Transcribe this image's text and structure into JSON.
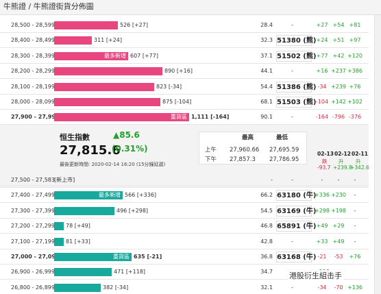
{
  "breadcrumb": "牛熊證 / 牛熊證街貨分佈圖",
  "bear_rows": [
    {
      "range": "28,500 - 28,599",
      "qty": "526 [+27]",
      "pct": "28.4",
      "code": "-",
      "d1": "+27",
      "d2": "+54",
      "d3": "+81",
      "d1c": "up",
      "d2c": "up",
      "d3c": "up",
      "tag": ""
    },
    {
      "range": "28,400 - 28,499",
      "qty": "311 [+24]",
      "pct": "32.3",
      "code": "51380 (熊)",
      "d1": "+24",
      "d2": "+51",
      "d3": "+97",
      "d1c": "up",
      "d2c": "up",
      "d3c": "up",
      "tag": ""
    },
    {
      "range": "28,300 - 28,399",
      "qty": "607 [+77]",
      "pct": "37.1",
      "code": "51502 (熊)",
      "d1": "+77",
      "d2": "+42",
      "d3": "+120",
      "d1c": "up",
      "d2c": "up",
      "d3c": "up",
      "tag": "最多新增"
    },
    {
      "range": "28,200 - 28,299",
      "qty": "890 [+16]",
      "pct": "44.1",
      "code": "-",
      "d1": "+16",
      "d2": "+237",
      "d3": "+386",
      "d1c": "up",
      "d2c": "up",
      "d3c": "up",
      "tag": ""
    },
    {
      "range": "28,100 - 28,199",
      "qty": "823 [-34]",
      "pct": "54.4",
      "code": "51386 (熊)",
      "d1": "-34",
      "d2": "+239",
      "d3": "+76",
      "d1c": "down",
      "d2c": "up",
      "d3c": "up",
      "tag": ""
    },
    {
      "range": "28,000 - 28,099",
      "qty": "875 [-104]",
      "pct": "68.1",
      "code": "51503 (熊)",
      "d1": "-104",
      "d2": "+142",
      "d3": "+102",
      "d1c": "down",
      "d2c": "up",
      "d3c": "up",
      "tag": ""
    },
    {
      "range": "27,900 - 27,999",
      "qty": "1,111 [-164]",
      "pct": "90.1",
      "code": "-",
      "d1": "-164",
      "d2": "-796",
      "d3": "-376",
      "d1c": "down",
      "d2c": "down",
      "d3c": "down",
      "tag": "重貨區"
    }
  ],
  "index": {
    "name": "恒生指數",
    "value": "27,815.6",
    "change": "▲85.6",
    "change_pct": "(0.31%)",
    "updated": "最後更新時間: 2020-02-14 16:20 (15分鐘延遲)",
    "high_label": "最高",
    "low_label": "最低",
    "am_label": "上午",
    "pm_label": "下午",
    "am_high": "27,960.66",
    "am_low": "27,695.59",
    "pm_high": "27,857.3",
    "pm_low": "27,786.95",
    "dates": [
      "02-13",
      "02-12",
      "02-11"
    ],
    "date_notes": [
      "跌",
      "升",
      "升"
    ],
    "date_values": [
      "-93.7",
      "+239.8",
      "+342.6"
    ]
  },
  "bull_rows": [
    {
      "range": "27,500 - 27,583",
      "qty": "",
      "pct": "-",
      "code": "-",
      "d1": "-",
      "d2": "-",
      "d3": "-",
      "d1c": "",
      "d2c": "",
      "d3c": "",
      "tag": "",
      "note": "[新上市]"
    },
    {
      "range": "27,400 - 27,499",
      "qty": "566 [+336]",
      "pct": "66.2",
      "code": "63180 (牛)",
      "d1": "+336",
      "d2": "+230",
      "d3": "-",
      "d1c": "up",
      "d2c": "up",
      "d3c": "",
      "tag": "最多新增"
    },
    {
      "range": "27,300 - 27,399",
      "qty": "496 [+298]",
      "pct": "54.5",
      "code": "63169 (牛)",
      "d1": "+298",
      "d2": "+198",
      "d3": "-",
      "d1c": "up",
      "d2c": "up",
      "d3c": "",
      "tag": ""
    },
    {
      "range": "27,200 - 27,299",
      "qty": "78 [+49]",
      "pct": "46.8",
      "code": "65891 (牛)",
      "d1": "+49",
      "d2": "+29",
      "d3": "-",
      "d1c": "up",
      "d2c": "up",
      "d3c": "",
      "tag": ""
    },
    {
      "range": "27,100 - 27,199",
      "qty": "81 [+33]",
      "pct": "42.8",
      "code": "-",
      "d1": "+33",
      "d2": "+49",
      "d3": "-",
      "d1c": "up",
      "d2c": "up",
      "d3c": "",
      "tag": ""
    },
    {
      "range": "27,000 - 27,099",
      "qty": "635 [-21]",
      "pct": "36.8",
      "code": "63168 (牛)",
      "d1": "-21",
      "d2": "-53",
      "d3": "+76",
      "d1c": "down",
      "d2c": "down",
      "d3c": "up",
      "tag": "重貨區"
    },
    {
      "range": "26,900 - 26,999",
      "qty": "471 [+118]",
      "pct": "34.7",
      "code": "-",
      "d1": "+118",
      "d2": "",
      "d3": "",
      "d1c": "up",
      "d2c": "",
      "d3c": "",
      "tag": ""
    },
    {
      "range": "26,800 - 26,899",
      "qty": "382 [-34]",
      "pct": "32.1",
      "code": "-",
      "d1": "-34",
      "d2": "-70",
      "d3": "+136",
      "d1c": "down",
      "d2c": "down",
      "d3c": "up",
      "tag": ""
    }
  ],
  "bar_levels_bear": [
    526,
    311,
    607,
    890,
    823,
    875,
    1111
  ],
  "bar_levels_bull": [
    0,
    566,
    496,
    78,
    81,
    635,
    471,
    382
  ],
  "watermark": "港股衍生組击手",
  "colors": {
    "bear": "#e8467f",
    "bull": "#18a99c",
    "up": "#22a02a",
    "down": "#d8263a"
  }
}
